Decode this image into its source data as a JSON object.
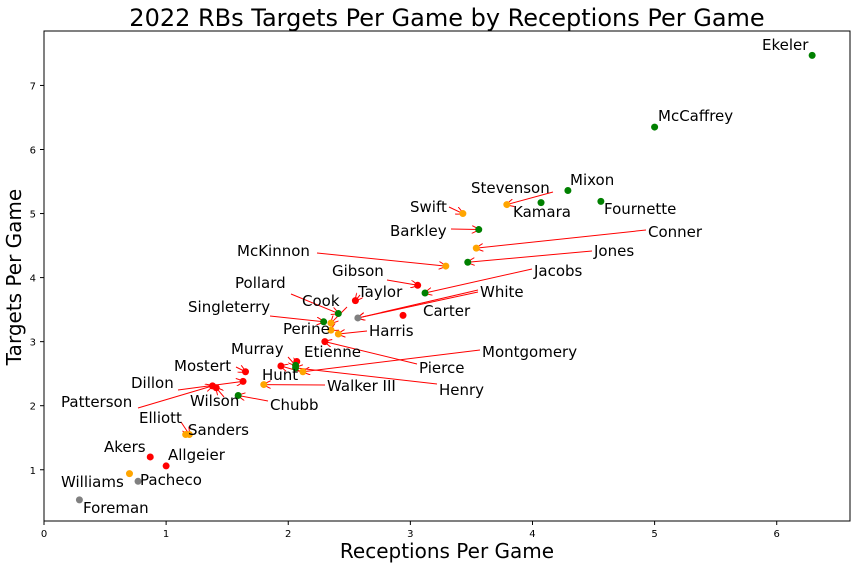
{
  "chart_data": {
    "type": "scatter",
    "title": "2022 RBs Targets Per Game by Receptions Per Game",
    "xlabel": "Receptions Per Game",
    "ylabel": "Targets Per Game",
    "xlim": [
      0,
      6.6
    ],
    "ylim": [
      0.2,
      7.85
    ],
    "xticks": [
      "0",
      "1",
      "2",
      "3",
      "4",
      "5",
      "6"
    ],
    "yticks": [
      "1",
      "2",
      "3",
      "4",
      "5",
      "6",
      "7"
    ],
    "grid": false,
    "colors": {
      "green": "#008000",
      "orange": "#ffa500",
      "red": "#ff0000",
      "gray": "#808080",
      "arrow": "#ff0000"
    },
    "points": [
      {
        "name": "Ekeler",
        "x": 6.29,
        "y": 7.47,
        "color": "green"
      },
      {
        "name": "McCaffrey",
        "x": 5.0,
        "y": 6.35,
        "color": "green"
      },
      {
        "name": "Mixon",
        "x": 4.29,
        "y": 5.36,
        "color": "green"
      },
      {
        "name": "Fournette",
        "x": 4.56,
        "y": 5.19,
        "color": "green"
      },
      {
        "name": "Stevenson",
        "x": 3.79,
        "y": 5.14,
        "color": "orange"
      },
      {
        "name": "Kamara",
        "x": 4.07,
        "y": 5.17,
        "color": "green"
      },
      {
        "name": "Swift",
        "x": 3.43,
        "y": 5.0,
        "color": "orange"
      },
      {
        "name": "Barkley",
        "x": 3.56,
        "y": 4.75,
        "color": "green"
      },
      {
        "name": "Conner",
        "x": 3.54,
        "y": 4.46,
        "color": "orange"
      },
      {
        "name": "Jones",
        "x": 3.47,
        "y": 4.24,
        "color": "green"
      },
      {
        "name": "McKinnon",
        "x": 3.29,
        "y": 4.18,
        "color": "orange"
      },
      {
        "name": "Gibson",
        "x": 3.06,
        "y": 3.88,
        "color": "red"
      },
      {
        "name": "Jacobs",
        "x": 3.12,
        "y": 3.76,
        "color": "green"
      },
      {
        "name": "Taylor",
        "x": 2.55,
        "y": 3.64,
        "color": "red"
      },
      {
        "name": "White",
        "x": 2.57,
        "y": 3.37,
        "color": "gray"
      },
      {
        "name": "Carter",
        "x": 2.94,
        "y": 3.41,
        "color": "red"
      },
      {
        "name": "Pollard",
        "x": 2.41,
        "y": 3.44,
        "color": "green"
      },
      {
        "name": "Cook",
        "x": 2.35,
        "y": 3.29,
        "color": "orange"
      },
      {
        "name": "Singleterry",
        "x": 2.29,
        "y": 3.31,
        "color": "green"
      },
      {
        "name": "Perine",
        "x": 2.35,
        "y": 3.18,
        "color": "orange"
      },
      {
        "name": "Harris",
        "x": 2.41,
        "y": 3.12,
        "color": "orange"
      },
      {
        "name": "Pierce",
        "x": 2.3,
        "y": 3.0,
        "color": "red"
      },
      {
        "name": "Etienne",
        "x": 2.07,
        "y": 2.69,
        "color": "red"
      },
      {
        "name": "Murray",
        "x": 2.06,
        "y": 2.63,
        "color": "green"
      },
      {
        "name": "Montgomery",
        "x": 2.12,
        "y": 2.53,
        "color": "orange"
      },
      {
        "name": "Mostert",
        "x": 1.65,
        "y": 2.53,
        "color": "red"
      },
      {
        "name": "Henry",
        "x": 2.06,
        "y": 2.59,
        "color": "green"
      },
      {
        "name": "Hunt",
        "x": 1.94,
        "y": 2.62,
        "color": "red"
      },
      {
        "name": "Walker III",
        "x": 1.8,
        "y": 2.33,
        "color": "orange"
      },
      {
        "name": "Dillon",
        "x": 1.63,
        "y": 2.38,
        "color": "red"
      },
      {
        "name": "Patterson",
        "x": 1.38,
        "y": 2.31,
        "color": "red"
      },
      {
        "name": "Wilson",
        "x": 1.41,
        "y": 2.28,
        "color": "red"
      },
      {
        "name": "Chubb",
        "x": 1.59,
        "y": 2.16,
        "color": "green"
      },
      {
        "name": "Elliott",
        "x": 1.19,
        "y": 1.55,
        "color": "orange"
      },
      {
        "name": "Sanders",
        "x": 1.16,
        "y": 1.55,
        "color": "orange"
      },
      {
        "name": "Akers",
        "x": 0.87,
        "y": 1.2,
        "color": "red"
      },
      {
        "name": "Allgeier",
        "x": 1.0,
        "y": 1.06,
        "color": "red"
      },
      {
        "name": "Williams",
        "x": 0.7,
        "y": 0.94,
        "color": "orange"
      },
      {
        "name": "Pacheco",
        "x": 0.77,
        "y": 0.82,
        "color": "gray"
      },
      {
        "name": "Foreman",
        "x": 0.29,
        "y": 0.53,
        "color": "gray"
      }
    ]
  }
}
